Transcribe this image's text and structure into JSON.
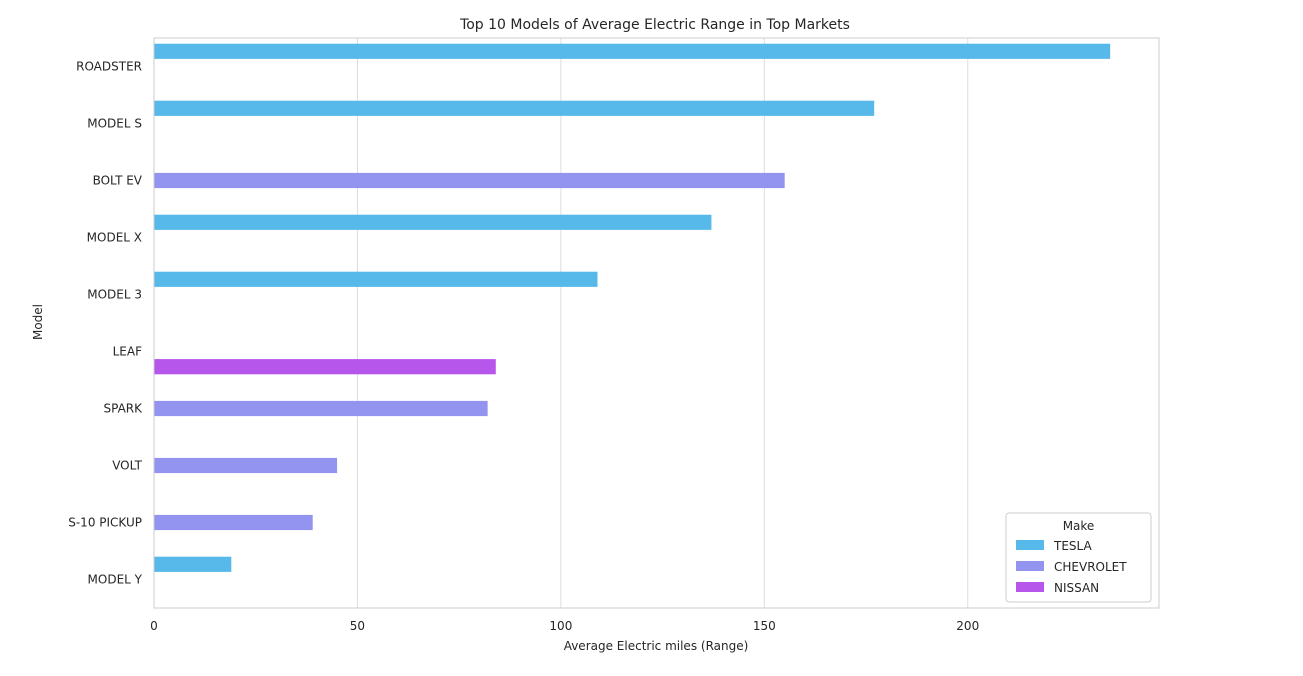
{
  "chart_data": {
    "type": "bar",
    "orientation": "horizontal",
    "title": "Top 10 Models of Average Electric Range in Top Markets",
    "xlabel": "Average Electric miles (Range)",
    "ylabel": "Model",
    "xlim": [
      0,
      247
    ],
    "xticks": [
      0,
      50,
      100,
      150,
      200
    ],
    "grid": "vertical",
    "categories": [
      "ROADSTER",
      "MODEL S",
      "BOLT EV",
      "MODEL X",
      "MODEL 3",
      "LEAF",
      "SPARK",
      "VOLT",
      "S-10 PICKUP",
      "MODEL Y"
    ],
    "series": [
      {
        "name": "TESLA",
        "color": "#57b9e9",
        "values": [
          235,
          177,
          null,
          137,
          109,
          null,
          null,
          null,
          null,
          19
        ]
      },
      {
        "name": "CHEVROLET",
        "color": "#9393f0",
        "values": [
          null,
          null,
          155,
          null,
          null,
          null,
          82,
          45,
          39,
          null
        ]
      },
      {
        "name": "NISSAN",
        "color": "#b656ea",
        "values": [
          null,
          null,
          null,
          null,
          null,
          84,
          null,
          null,
          null,
          null
        ]
      }
    ],
    "legend": {
      "title": "Make",
      "placement": "bottom-right"
    }
  }
}
